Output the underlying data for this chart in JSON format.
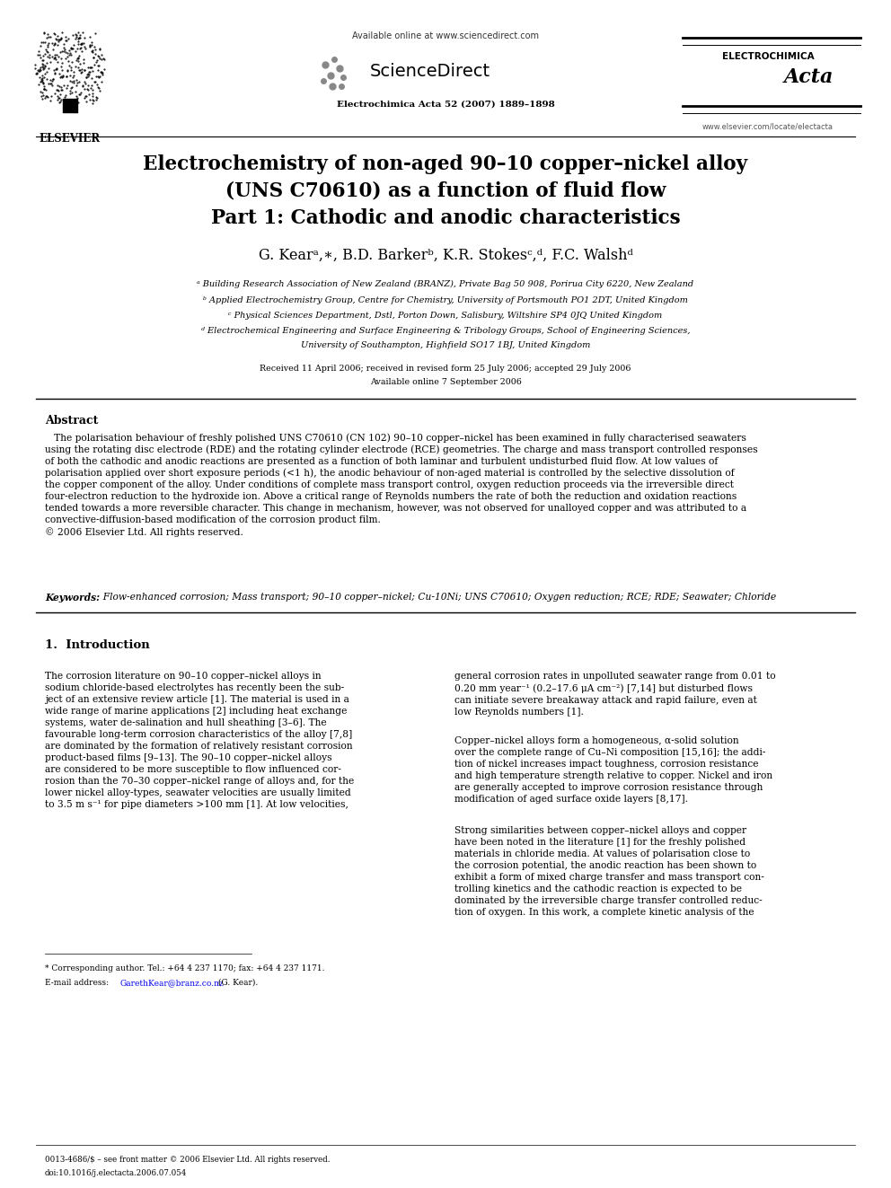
{
  "bg_color": "#ffffff",
  "page_width": 9.92,
  "page_height": 13.23,
  "dpi": 100,
  "header": {
    "available_online_text": "Available online at www.sciencedirect.com",
    "sciencedirect_text": "ScienceDirect",
    "elsevier_text": "ELSEVIER",
    "journal_text": "Electrochimica Acta 52 (2007) 1889–1898",
    "journal_logo_text": "ELECTROCHIMICA",
    "journal_logo_acta": "Acta",
    "journal_url": "www.elsevier.com/locate/electacta"
  },
  "title_line1": "Electrochemistry of non-aged 90–10 copper–nickel alloy",
  "title_line2": "(UNS C70610) as a function of fluid flow",
  "title_line3": "Part 1: Cathodic and anodic characteristics",
  "authors_line": "G. Kearᵃ,∗, B.D. Barkerᵇ, K.R. Stokesᶜ,ᵈ, F.C. Walshᵈ",
  "affil_a": "ᵃ Building Research Association of New Zealand (BRANZ), Private Bag 50 908, Porirua City 6220, New Zealand",
  "affil_b": "ᵇ Applied Electrochemistry Group, Centre for Chemistry, University of Portsmouth PO1 2DT, United Kingdom",
  "affil_c": "ᶜ Physical Sciences Department, Dstl, Porton Down, Salisbury, Wiltshire SP4 0JQ United Kingdom",
  "affil_d1": "ᵈ Electrochemical Engineering and Surface Engineering & Tribology Groups, School of Engineering Sciences,",
  "affil_d2": "University of Southampton, Highfield SO17 1BJ, United Kingdom",
  "received_text": "Received 11 April 2006; received in revised form 25 July 2006; accepted 29 July 2006",
  "available_online": "Available online 7 September 2006",
  "abstract_title": "Abstract",
  "abstract_body": "   The polarisation behaviour of freshly polished UNS C70610 (CN 102) 90–10 copper–nickel has been examined in fully characterised seawaters\nusing the rotating disc electrode (RDE) and the rotating cylinder electrode (RCE) geometries. The charge and mass transport controlled responses\nof both the cathodic and anodic reactions are presented as a function of both laminar and turbulent undisturbed fluid flow. At low values of\npolarisation applied over short exposure periods (<1 h), the anodic behaviour of non-aged material is controlled by the selective dissolution of\nthe copper component of the alloy. Under conditions of complete mass transport control, oxygen reduction proceeds via the irreversible direct\nfour-electron reduction to the hydroxide ion. Above a critical range of Reynolds numbers the rate of both the reduction and oxidation reactions\ntended towards a more reversible character. This change in mechanism, however, was not observed for unalloyed copper and was attributed to a\nconvective-diffusion-based modification of the corrosion product film.\n© 2006 Elsevier Ltd. All rights reserved.",
  "keywords_label": "Keywords:",
  "keywords_body": "  Flow-enhanced corrosion; Mass transport; 90–10 copper–nickel; Cu-10Ni; UNS C70610; Oxygen reduction; RCE; RDE; Seawater; Chloride",
  "section1_title": "1.  Introduction",
  "intro_col1": "The corrosion literature on 90–10 copper–nickel alloys in\nsodium chloride-based electrolytes has recently been the sub-\nject of an extensive review article [1]. The material is used in a\nwide range of marine applications [2] including heat exchange\nsystems, water de-salination and hull sheathing [3–6]. The\nfavourable long-term corrosion characteristics of the alloy [7,8]\nare dominated by the formation of relatively resistant corrosion\nproduct-based films [9–13]. The 90–10 copper–nickel alloys\nare considered to be more susceptible to flow influenced cor-\nrosion than the 70–30 copper–nickel range of alloys and, for the\nlower nickel alloy-types, seawater velocities are usually limited\nto 3.5 m s⁻¹ for pipe diameters >100 mm [1]. At low velocities,",
  "intro_col2_p1": "general corrosion rates in unpolluted seawater range from 0.01 to\n0.20 mm year⁻¹ (0.2–17.6 μA cm⁻²) [7,14] but disturbed flows\ncan initiate severe breakaway attack and rapid failure, even at\nlow Reynolds numbers [1].",
  "intro_col2_p2": "Copper–nickel alloys form a homogeneous, α-solid solution\nover the complete range of Cu–Ni composition [15,16]; the addi-\ntion of nickel increases impact toughness, corrosion resistance\nand high temperature strength relative to copper. Nickel and iron\nare generally accepted to improve corrosion resistance through\nmodification of aged surface oxide layers [8,17].",
  "intro_col2_p3": "Strong similarities between copper–nickel alloys and copper\nhave been noted in the literature [1] for the freshly polished\nmaterials in chloride media. At values of polarisation close to\nthe corrosion potential, the anodic reaction has been shown to\nexhibit a form of mixed charge transfer and mass transport con-\ntrolling kinetics and the cathodic reaction is expected to be\ndominated by the irreversible charge transfer controlled reduc-\ntion of oxygen. In this work, a complete kinetic analysis of the",
  "footnote_star": "* Corresponding author. Tel.: +64 4 237 1170; fax: +64 4 237 1171.",
  "footnote_email_prefix": "E-mail address: ",
  "footnote_email_link": "GarethKear@branz.co.nz",
  "footnote_email_suffix": " (G. Kear).",
  "footer_left": "0013-4686/$ – see front matter © 2006 Elsevier Ltd. All rights reserved.",
  "footer_doi": "doi:10.1016/j.electacta.2006.07.054",
  "link_color": "#0000ee",
  "text_color": "#000000"
}
